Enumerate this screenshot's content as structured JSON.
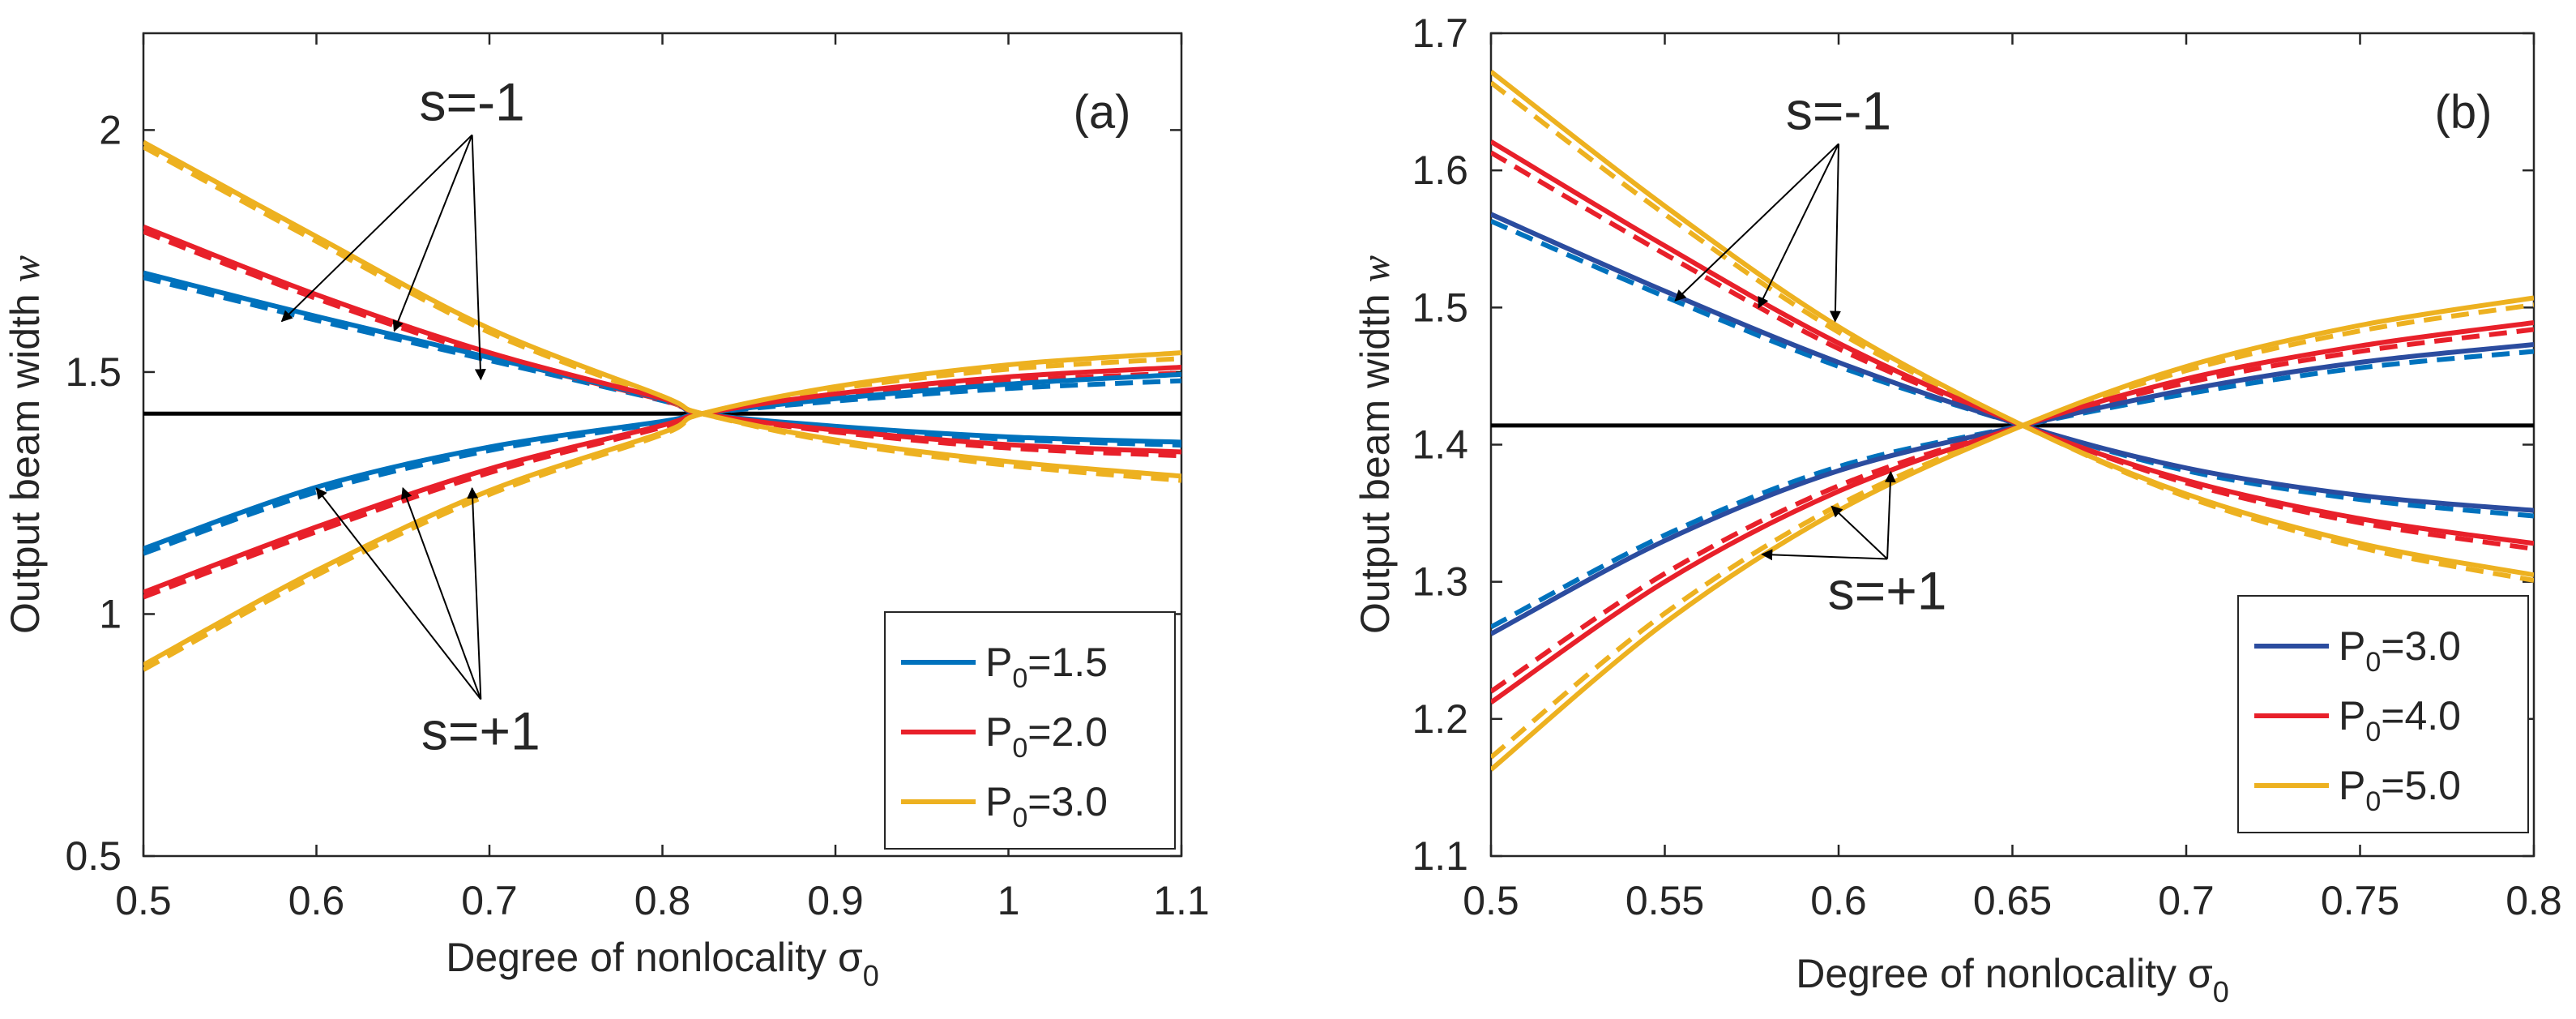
{
  "chart_data": [
    {
      "type": "line",
      "panel_label": "(a)",
      "xlabel": "Degree of nonlocality σ",
      "xlabel_subscript": "0",
      "ylabel": "Output beam width",
      "ylabel_symbol": "w",
      "xlim": [
        0.5,
        1.1
      ],
      "ylim": [
        0.5,
        2.2
      ],
      "xticks": [
        0.5,
        0.6,
        0.7,
        0.8,
        0.9,
        1.0,
        1.1
      ],
      "xtick_labels": [
        "0.5",
        "0.6",
        "0.7",
        "0.8",
        "0.9",
        "1",
        "1.1"
      ],
      "yticks": [
        0.5,
        1.0,
        1.5,
        2.0
      ],
      "ytick_labels": [
        "0.5",
        "1",
        "1.5",
        "2"
      ],
      "reference_line": {
        "y": 1.414,
        "color": "#000000"
      },
      "legend": {
        "position": "bottom-right",
        "entries": [
          {
            "label": "P",
            "subscript": "0",
            "value": "=1.5",
            "color": "#0072BD"
          },
          {
            "label": "P",
            "subscript": "0",
            "value": "=2.0",
            "color": "#E8202A"
          },
          {
            "label": "P",
            "subscript": "0",
            "value": "=3.0",
            "color": "#EDB120"
          }
        ]
      },
      "annotations": [
        {
          "text": "s=-1",
          "at": [
            0.69,
            2.02
          ],
          "arrows_to": [
            [
              0.58,
              1.605
            ],
            [
              0.645,
              1.585
            ],
            [
              0.695,
              1.485
            ]
          ]
        },
        {
          "text": "s=+1",
          "at": [
            0.695,
            0.72
          ],
          "arrows_to": [
            [
              0.6,
              1.26
            ],
            [
              0.65,
              1.26
            ],
            [
              0.69,
              1.26
            ]
          ]
        }
      ],
      "series": [
        {
          "name": "P0=1.5, s=-1",
          "color": "#0072BD",
          "style": "solid",
          "x": [
            0.5,
            0.6,
            0.7,
            0.8,
            0.823,
            0.9,
            1.0,
            1.1
          ],
          "y": [
            1.705,
            1.615,
            1.53,
            1.444,
            1.414,
            1.388,
            1.366,
            1.355
          ]
        },
        {
          "name": "P0=1.5, s=-1 (dashed)",
          "color": "#0072BD",
          "style": "dashed",
          "x": [
            0.5,
            0.6,
            0.7,
            0.8,
            0.823,
            0.9,
            1.0,
            1.1
          ],
          "y": [
            1.695,
            1.607,
            1.524,
            1.441,
            1.414,
            1.385,
            1.361,
            1.349
          ]
        },
        {
          "name": "P0=1.5, s=+1",
          "color": "#0072BD",
          "style": "solid",
          "x": [
            0.5,
            0.6,
            0.7,
            0.8,
            0.823,
            0.9,
            1.0,
            1.1
          ],
          "y": [
            1.135,
            1.262,
            1.345,
            1.398,
            1.414,
            1.445,
            1.475,
            1.495
          ]
        },
        {
          "name": "P0=1.5, s=+1 (dashed)",
          "color": "#0072BD",
          "style": "dashed",
          "x": [
            0.5,
            0.6,
            0.7,
            0.8,
            0.823,
            0.9,
            1.0,
            1.1
          ],
          "y": [
            1.125,
            1.252,
            1.338,
            1.395,
            1.414,
            1.44,
            1.466,
            1.482
          ]
        },
        {
          "name": "P0=2.0, s=-1",
          "color": "#E8202A",
          "style": "solid",
          "x": [
            0.5,
            0.6,
            0.7,
            0.8,
            0.823,
            0.9,
            1.0,
            1.1
          ],
          "y": [
            1.8,
            1.66,
            1.54,
            1.445,
            1.414,
            1.38,
            1.35,
            1.335
          ]
        },
        {
          "name": "P0=2.0, s=-1 (dashed)",
          "color": "#E8202A",
          "style": "dashed",
          "x": [
            0.5,
            0.6,
            0.7,
            0.8,
            0.823,
            0.9,
            1.0,
            1.1
          ],
          "y": [
            1.79,
            1.652,
            1.534,
            1.442,
            1.414,
            1.376,
            1.343,
            1.327
          ]
        },
        {
          "name": "P0=2.0, s=+1",
          "color": "#E8202A",
          "style": "solid",
          "x": [
            0.5,
            0.6,
            0.7,
            0.8,
            0.823,
            0.9,
            1.0,
            1.1
          ],
          "y": [
            1.045,
            1.18,
            1.3,
            1.39,
            1.414,
            1.455,
            1.49,
            1.51
          ]
        },
        {
          "name": "P0=2.0, s=+1 (dashed)",
          "color": "#E8202A",
          "style": "dashed",
          "x": [
            0.5,
            0.6,
            0.7,
            0.8,
            0.823,
            0.9,
            1.0,
            1.1
          ],
          "y": [
            1.035,
            1.17,
            1.292,
            1.386,
            1.414,
            1.45,
            1.481,
            1.498
          ]
        },
        {
          "name": "P0=3.0, s=-1",
          "color": "#EDB120",
          "style": "solid",
          "x": [
            0.5,
            0.6,
            0.7,
            0.8,
            0.823,
            0.9,
            1.0,
            1.1
          ],
          "y": [
            1.975,
            1.78,
            1.59,
            1.45,
            1.414,
            1.36,
            1.315,
            1.285
          ]
        },
        {
          "name": "P0=3.0, s=-1 (dashed)",
          "color": "#EDB120",
          "style": "dashed",
          "x": [
            0.5,
            0.6,
            0.7,
            0.8,
            0.823,
            0.9,
            1.0,
            1.1
          ],
          "y": [
            1.965,
            1.77,
            1.582,
            1.446,
            1.414,
            1.355,
            1.307,
            1.276
          ]
        },
        {
          "name": "P0=3.0, s=+1",
          "color": "#EDB120",
          "style": "solid",
          "x": [
            0.5,
            0.6,
            0.7,
            0.8,
            0.823,
            0.9,
            1.0,
            1.1
          ],
          "y": [
            0.895,
            1.09,
            1.255,
            1.375,
            1.414,
            1.47,
            1.515,
            1.54
          ]
        },
        {
          "name": "P0=3.0, s=+1 (dashed)",
          "color": "#EDB120",
          "style": "dashed",
          "x": [
            0.5,
            0.6,
            0.7,
            0.8,
            0.823,
            0.9,
            1.0,
            1.1
          ],
          "y": [
            0.885,
            1.08,
            1.247,
            1.371,
            1.414,
            1.465,
            1.506,
            1.528
          ]
        }
      ]
    },
    {
      "type": "line",
      "panel_label": "(b)",
      "xlabel": "Degree of nonlocality σ",
      "xlabel_subscript": "0",
      "ylabel": "Output beam width",
      "ylabel_symbol": "w",
      "xlim": [
        0.5,
        0.8
      ],
      "ylim": [
        1.1,
        1.7
      ],
      "xticks": [
        0.5,
        0.55,
        0.6,
        0.65,
        0.7,
        0.75,
        0.8
      ],
      "xtick_labels": [
        "0.5",
        "0.55",
        "0.6",
        "0.65",
        "0.7",
        "0.75",
        "0.8"
      ],
      "yticks": [
        1.1,
        1.2,
        1.3,
        1.4,
        1.5,
        1.6,
        1.7
      ],
      "ytick_labels": [
        "1.1",
        "1.2",
        "1.3",
        "1.4",
        "1.5",
        "1.6",
        "1.7"
      ],
      "reference_line": {
        "y": 1.414,
        "color": "#000000"
      },
      "legend": {
        "position": "bottom-right",
        "entries": [
          {
            "label": "P",
            "subscript": "0",
            "value": "=3.0",
            "color": "#2B4C9F"
          },
          {
            "label": "P",
            "subscript": "0",
            "value": "=4.0",
            "color": "#E8202A"
          },
          {
            "label": "P",
            "subscript": "0",
            "value": "=5.0",
            "color": "#EDB120"
          }
        ]
      },
      "annotations": [
        {
          "text": "s=-1",
          "at": [
            0.6,
            1.63
          ],
          "arrows_to": [
            [
              0.553,
              1.505
            ],
            [
              0.577,
              1.5
            ],
            [
              0.599,
              1.49
            ]
          ]
        },
        {
          "text": "s=+1",
          "at": [
            0.614,
            1.28
          ],
          "arrows_to": [
            [
              0.578,
              1.32
            ],
            [
              0.598,
              1.355
            ],
            [
              0.615,
              1.38
            ]
          ]
        }
      ],
      "series": [
        {
          "name": "P0=3.0, s=-1",
          "color": "#2B4C9F",
          "style": "solid",
          "x": [
            0.5,
            0.55,
            0.6,
            0.653,
            0.7,
            0.75,
            0.8
          ],
          "y": [
            1.568,
            1.512,
            1.46,
            1.414,
            1.383,
            1.363,
            1.352
          ]
        },
        {
          "name": "P0=3.0, s=-1 (dashed)",
          "color": "#0072BD",
          "style": "dashed",
          "x": [
            0.5,
            0.55,
            0.6,
            0.653,
            0.7,
            0.75,
            0.8
          ],
          "y": [
            1.563,
            1.508,
            1.457,
            1.414,
            1.381,
            1.36,
            1.348
          ]
        },
        {
          "name": "P0=3.0, s=+1",
          "color": "#2B4C9F",
          "style": "solid",
          "x": [
            0.5,
            0.55,
            0.6,
            0.653,
            0.7,
            0.75,
            0.8
          ],
          "y": [
            1.262,
            1.33,
            1.381,
            1.414,
            1.44,
            1.46,
            1.473
          ]
        },
        {
          "name": "P0=3.0, s=+1 (dashed)",
          "color": "#0072BD",
          "style": "dashed",
          "x": [
            0.5,
            0.55,
            0.6,
            0.653,
            0.7,
            0.75,
            0.8
          ],
          "y": [
            1.267,
            1.334,
            1.384,
            1.414,
            1.437,
            1.456,
            1.468
          ]
        },
        {
          "name": "P0=4.0, s=-1",
          "color": "#E8202A",
          "style": "solid",
          "x": [
            0.5,
            0.55,
            0.6,
            0.653,
            0.7,
            0.75,
            0.8
          ],
          "y": [
            1.621,
            1.545,
            1.474,
            1.414,
            1.374,
            1.346,
            1.328
          ]
        },
        {
          "name": "P0=4.0, s=-1 (dashed)",
          "color": "#E8202A",
          "style": "dashed",
          "x": [
            0.5,
            0.55,
            0.6,
            0.653,
            0.7,
            0.75,
            0.8
          ],
          "y": [
            1.613,
            1.539,
            1.47,
            1.414,
            1.372,
            1.343,
            1.324
          ]
        },
        {
          "name": "P0=4.0, s=+1",
          "color": "#E8202A",
          "style": "solid",
          "x": [
            0.5,
            0.55,
            0.6,
            0.653,
            0.7,
            0.75,
            0.8
          ],
          "y": [
            1.212,
            1.3,
            1.366,
            1.414,
            1.448,
            1.472,
            1.489
          ]
        },
        {
          "name": "P0=4.0, s=+1 (dashed)",
          "color": "#E8202A",
          "style": "dashed",
          "x": [
            0.5,
            0.55,
            0.6,
            0.653,
            0.7,
            0.75,
            0.8
          ],
          "y": [
            1.22,
            1.306,
            1.37,
            1.414,
            1.445,
            1.468,
            1.484
          ]
        },
        {
          "name": "P0=5.0, s=-1",
          "color": "#EDB120",
          "style": "solid",
          "x": [
            0.5,
            0.55,
            0.6,
            0.653,
            0.7,
            0.75,
            0.8
          ],
          "y": [
            1.672,
            1.574,
            1.486,
            1.414,
            1.364,
            1.328,
            1.305
          ]
        },
        {
          "name": "P0=5.0, s=-1 (dashed)",
          "color": "#EDB120",
          "style": "dashed",
          "x": [
            0.5,
            0.55,
            0.6,
            0.653,
            0.7,
            0.75,
            0.8
          ],
          "y": [
            1.664,
            1.568,
            1.482,
            1.414,
            1.362,
            1.325,
            1.301
          ]
        },
        {
          "name": "P0=5.0, s=+1",
          "color": "#EDB120",
          "style": "solid",
          "x": [
            0.5,
            0.55,
            0.6,
            0.653,
            0.7,
            0.75,
            0.8
          ],
          "y": [
            1.163,
            1.27,
            1.352,
            1.414,
            1.457,
            1.487,
            1.507
          ]
        },
        {
          "name": "P0=5.0, s=+1 (dashed)",
          "color": "#EDB120",
          "style": "dashed",
          "x": [
            0.5,
            0.55,
            0.6,
            0.653,
            0.7,
            0.75,
            0.8
          ],
          "y": [
            1.172,
            1.277,
            1.356,
            1.414,
            1.454,
            1.483,
            1.502
          ]
        }
      ]
    }
  ]
}
